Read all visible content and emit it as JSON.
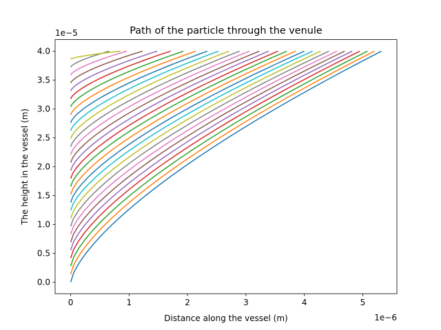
{
  "chart_data": {
    "type": "line",
    "title": "Path of the particle through the venule",
    "xlabel": "Distance along the vessel (m)",
    "ylabel": "The height in the vessel (m)",
    "x_offset_label": "1e−6",
    "y_offset_label": "1e−5",
    "xlim": [
      -0.266,
      5.584
    ],
    "ylim": [
      -0.2,
      4.2
    ],
    "x_ticks": [
      0,
      1,
      2,
      3,
      4,
      5
    ],
    "x_tick_labels": [
      "0",
      "1",
      "2",
      "3",
      "4",
      "5"
    ],
    "y_ticks": [
      0.0,
      0.5,
      1.0,
      1.5,
      2.0,
      2.5,
      3.0,
      3.5,
      4.0
    ],
    "y_tick_labels": [
      "0.0",
      "0.5",
      "1.0",
      "1.5",
      "2.0",
      "2.5",
      "3.0",
      "3.5",
      "4.0"
    ],
    "grid": false,
    "y_end": 4.0,
    "colors": [
      "#1f77b4",
      "#ff7f0e",
      "#2ca02c",
      "#d62728",
      "#9467bd",
      "#8c564b",
      "#e377c2",
      "#7f7f7f",
      "#bcbd22",
      "#17becf"
    ],
    "series": [
      {
        "y0": 0.0,
        "x_end": 5.32
      },
      {
        "y0": 0.138,
        "x_end": 5.2
      },
      {
        "y0": 0.276,
        "x_end": 5.08
      },
      {
        "y0": 0.414,
        "x_end": 4.95
      },
      {
        "y0": 0.552,
        "x_end": 4.82
      },
      {
        "y0": 0.69,
        "x_end": 4.69
      },
      {
        "y0": 0.828,
        "x_end": 4.56
      },
      {
        "y0": 0.966,
        "x_end": 4.42
      },
      {
        "y0": 1.103,
        "x_end": 4.28
      },
      {
        "y0": 1.241,
        "x_end": 4.14
      },
      {
        "y0": 1.379,
        "x_end": 4.0
      },
      {
        "y0": 1.517,
        "x_end": 3.85
      },
      {
        "y0": 1.655,
        "x_end": 3.7
      },
      {
        "y0": 1.793,
        "x_end": 3.55
      },
      {
        "y0": 1.931,
        "x_end": 3.39
      },
      {
        "y0": 2.069,
        "x_end": 3.23
      },
      {
        "y0": 2.207,
        "x_end": 3.06
      },
      {
        "y0": 2.345,
        "x_end": 2.89
      },
      {
        "y0": 2.483,
        "x_end": 2.71
      },
      {
        "y0": 2.621,
        "x_end": 2.53
      },
      {
        "y0": 2.759,
        "x_end": 2.34
      },
      {
        "y0": 2.897,
        "x_end": 2.14
      },
      {
        "y0": 3.034,
        "x_end": 1.93
      },
      {
        "y0": 3.172,
        "x_end": 1.71
      },
      {
        "y0": 3.31,
        "x_end": 1.48
      },
      {
        "y0": 3.448,
        "x_end": 1.23
      },
      {
        "y0": 3.586,
        "x_end": 0.96
      },
      {
        "y0": 3.724,
        "x_end": 0.66
      },
      {
        "y0": 3.862,
        "x_end": 0.85
      }
    ]
  }
}
